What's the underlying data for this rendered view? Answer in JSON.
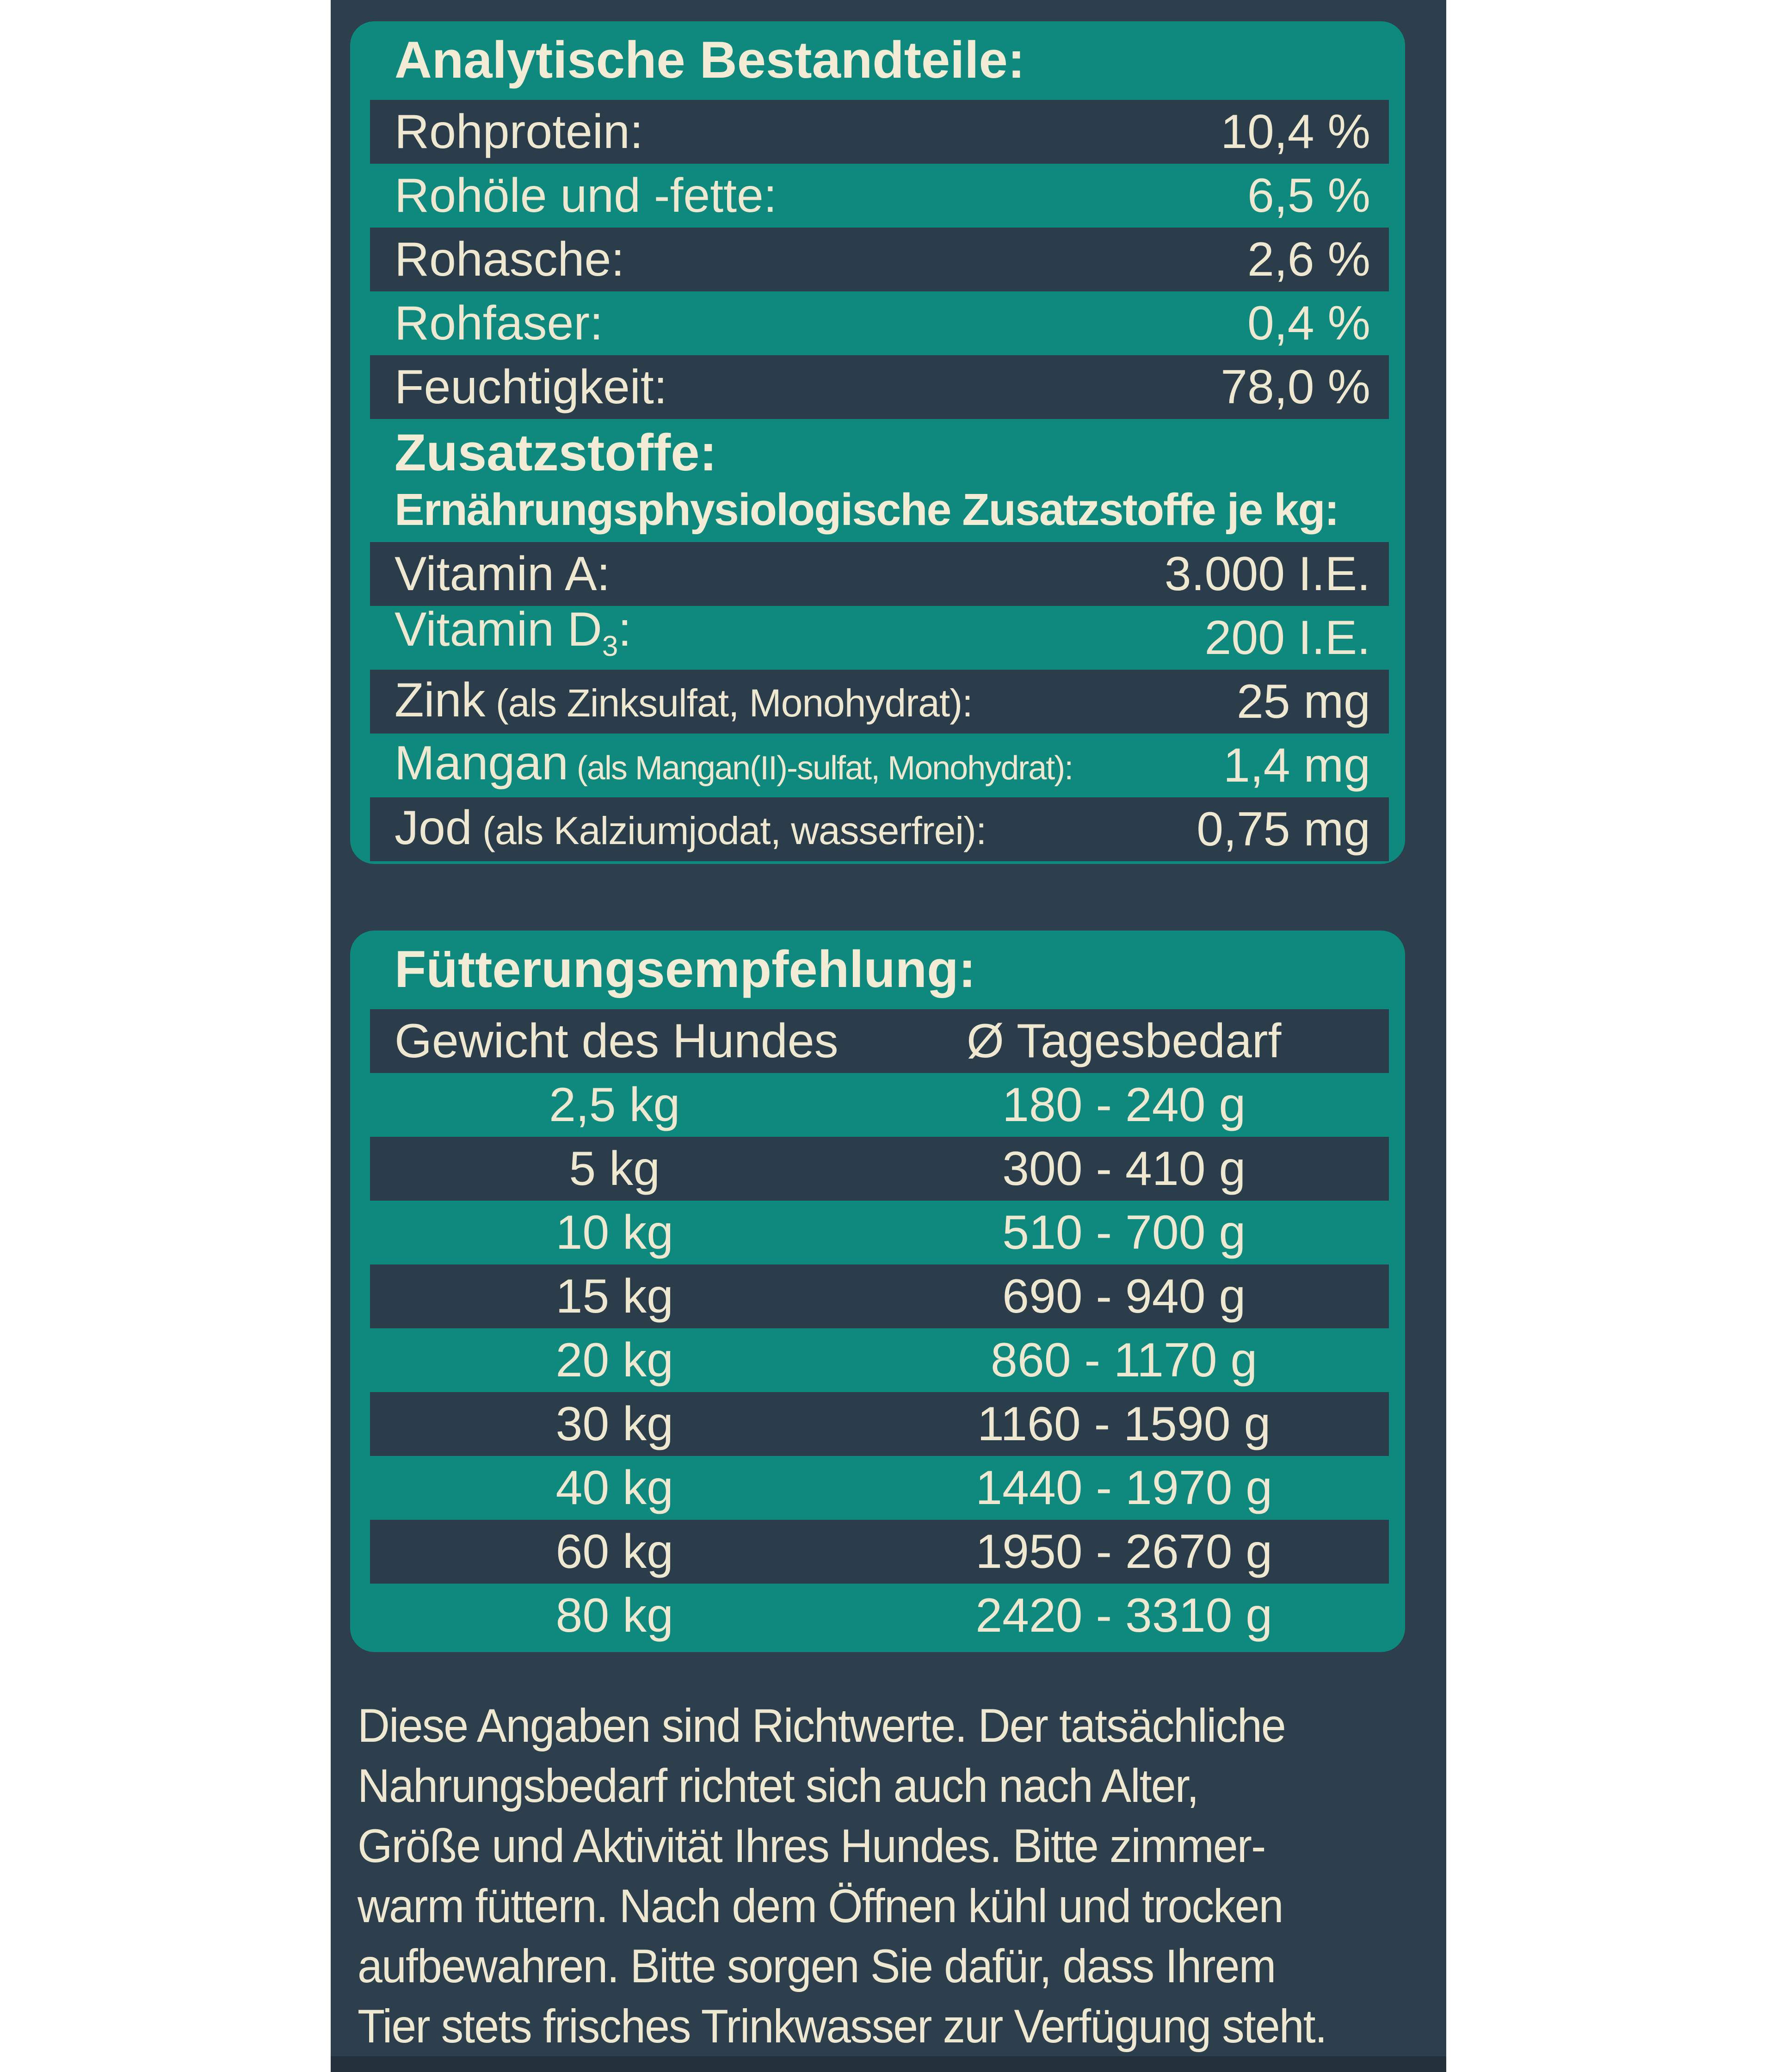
{
  "colors": {
    "teal_panel": "#0d897e",
    "navy_background": "#2d3e4c",
    "navy_row": "#2b3c4a",
    "cream_text": "#efe8d1",
    "bottom_strip": "#232f3b",
    "margin": "#ffffff"
  },
  "analytical": {
    "title": "Analytische Bestandteile:",
    "rows": [
      {
        "label": "Rohprotein:",
        "value": "10,4 %"
      },
      {
        "label": "Rohöle und -fette:",
        "value": "6,5 %"
      },
      {
        "label": "Rohasche:",
        "value": "2,6 %"
      },
      {
        "label": "Rohfaser:",
        "value": "0,4 %"
      },
      {
        "label": "Feuchtigkeit:",
        "value": "78,0 %"
      }
    ]
  },
  "additives": {
    "title": "Zusatzstoffe:",
    "subtitle": "Ernährungsphysiologische Zusatzstoffe je kg:",
    "rows": [
      {
        "label": "Vitamin A:",
        "value": "3.000 I.E."
      },
      {
        "label": "Vitamin D",
        "label_sub": "3",
        "label_suffix": ":",
        "value": "200 I.E."
      },
      {
        "label": "Zink",
        "label_small": " (als Zinksulfat, Monohydrat):",
        "value": "25 mg"
      },
      {
        "label": "Mangan",
        "label_small": " (als Mangan(II)-sulfat, Monohydrat):",
        "value": "1,4 mg"
      },
      {
        "label": "Jod",
        "label_small": " (als Kalziumjodat, wasserfrei):",
        "value": "0,75 mg"
      }
    ]
  },
  "feeding": {
    "title": "Fütterungsempfehlung:",
    "col1_header": "Gewicht des Hundes",
    "col2_header": "Ø Tagesbedarf",
    "rows": [
      {
        "weight": "2,5 kg",
        "amount": "180 - 240 g"
      },
      {
        "weight": "5 kg",
        "amount": "300 - 410 g"
      },
      {
        "weight": "10 kg",
        "amount": "510 - 700 g"
      },
      {
        "weight": "15 kg",
        "amount": "690 - 940 g"
      },
      {
        "weight": "20 kg",
        "amount": "860 - 1170 g"
      },
      {
        "weight": "30 kg",
        "amount": "1160 - 1590 g"
      },
      {
        "weight": "40 kg",
        "amount": "1440 - 1970 g"
      },
      {
        "weight": "60 kg",
        "amount": "1950 - 2670 g"
      },
      {
        "weight": "80 kg",
        "amount": "2420 - 3310 g"
      }
    ]
  },
  "note": {
    "lines": [
      "Diese Angaben sind Richtwerte. Der tatsächliche",
      "Nahrungsbedarf richtet sich auch nach Alter,",
      "Größe und Aktivität Ihres Hundes. Bitte zimmer-",
      "warm füttern. Nach dem Öffnen kühl und trocken",
      "aufbewahren. Bitte sorgen Sie dafür, dass Ihrem",
      "Tier stets frisches Trinkwasser zur Verfügung steht."
    ]
  }
}
